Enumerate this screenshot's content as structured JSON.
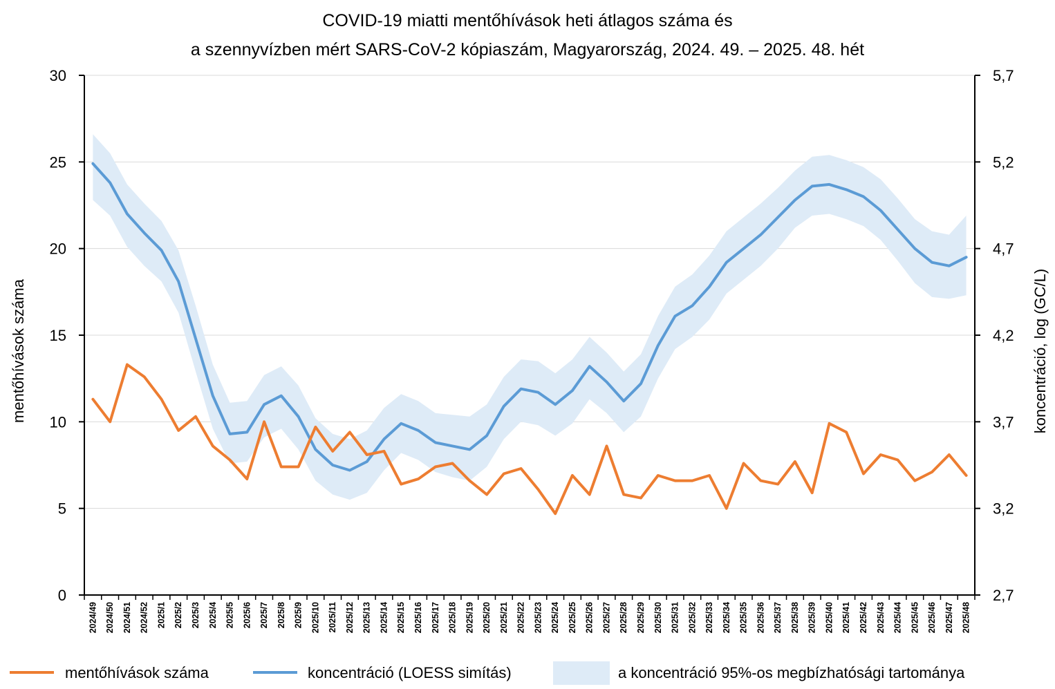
{
  "chart_data": {
    "type": "line",
    "title_line1": "COVID-19 miatti mentőhívások heti átlagos száma és",
    "title_line2": "a szennyvízben mért SARS-CoV-2 kópiaszám, Magyarország, 2024. 49. – 2025. 48. hét",
    "ylabel_left": "mentőhívások száma",
    "ylabel_right": "koncentráció, log (GC/L)",
    "ylim_left": [
      0,
      30
    ],
    "ylim_right": [
      2.7,
      5.7
    ],
    "yticks_left": [
      "0",
      "5",
      "10",
      "15",
      "20",
      "25",
      "30"
    ],
    "yticks_right": [
      "2,7",
      "3,2",
      "3,7",
      "4,2",
      "4,7",
      "5,2",
      "5,7"
    ],
    "categories": [
      "2024/49",
      "2024/50",
      "2024/51",
      "2024/52",
      "2025/1",
      "2025/2",
      "2025/3",
      "2025/4",
      "2025/5",
      "2025/6",
      "2025/7",
      "2025/8",
      "2025/9",
      "2025/10",
      "2025/11",
      "2025/12",
      "2025/13",
      "2025/14",
      "2025/15",
      "2025/16",
      "2025/17",
      "2025/18",
      "2025/19",
      "2025/20",
      "2025/21",
      "2025/22",
      "2025/23",
      "2025/24",
      "2025/25",
      "2025/26",
      "2025/27",
      "2025/28",
      "2025/29",
      "2025/30",
      "2025/31",
      "2025/32",
      "2025/33",
      "2025/34",
      "2025/35",
      "2025/36",
      "2025/37",
      "2025/38",
      "2025/39",
      "2025/40",
      "2025/41",
      "2025/42",
      "2025/43",
      "2025/44",
      "2025/45",
      "2025/46",
      "2025/47",
      "2025/48"
    ],
    "series": [
      {
        "name": "mentőhívások száma",
        "axis": "left",
        "color": "#ED7D31",
        "values": [
          11.3,
          10.0,
          13.3,
          12.6,
          11.3,
          9.5,
          10.3,
          8.6,
          7.8,
          6.7,
          10.0,
          7.4,
          7.4,
          9.7,
          8.3,
          9.4,
          8.1,
          8.3,
          6.4,
          6.7,
          7.4,
          7.6,
          6.6,
          5.8,
          7.0,
          7.3,
          6.1,
          4.7,
          6.9,
          5.8,
          8.6,
          5.8,
          5.6,
          6.9,
          6.6,
          6.6,
          6.9,
          5.0,
          7.6,
          6.6,
          6.4,
          7.7,
          5.9,
          9.9,
          9.4,
          7.0,
          8.1,
          7.8,
          6.6,
          7.1,
          8.1,
          6.9
        ]
      },
      {
        "name": "koncentráció (LOESS simítás)",
        "axis": "right",
        "color": "#5B9BD5",
        "values": [
          5.19,
          5.08,
          4.9,
          4.79,
          4.69,
          4.51,
          4.18,
          3.85,
          3.63,
          3.64,
          3.8,
          3.85,
          3.73,
          3.54,
          3.45,
          3.42,
          3.47,
          3.6,
          3.69,
          3.65,
          3.58,
          3.56,
          3.54,
          3.62,
          3.79,
          3.89,
          3.87,
          3.8,
          3.88,
          4.02,
          3.93,
          3.82,
          3.92,
          4.14,
          4.31,
          4.37,
          4.48,
          4.62,
          4.7,
          4.78,
          4.88,
          4.98,
          5.06,
          5.07,
          5.04,
          5.0,
          4.92,
          4.81,
          4.7,
          4.62,
          4.6,
          4.65
        ]
      },
      {
        "name": "a koncentráció 95%-os megbízhatósági tartománya",
        "axis": "right",
        "color": "#DEEBF7",
        "lower": [
          4.98,
          4.89,
          4.71,
          4.6,
          4.51,
          4.33,
          3.99,
          3.66,
          3.46,
          3.47,
          3.61,
          3.66,
          3.54,
          3.36,
          3.28,
          3.25,
          3.29,
          3.42,
          3.52,
          3.48,
          3.41,
          3.38,
          3.36,
          3.44,
          3.6,
          3.7,
          3.68,
          3.62,
          3.69,
          3.83,
          3.75,
          3.64,
          3.73,
          3.95,
          4.12,
          4.19,
          4.29,
          4.44,
          4.52,
          4.6,
          4.7,
          4.82,
          4.89,
          4.9,
          4.87,
          4.83,
          4.75,
          4.63,
          4.5,
          4.42,
          4.41,
          4.43
        ],
        "upper": [
          5.36,
          5.25,
          5.07,
          4.96,
          4.86,
          4.69,
          4.37,
          4.03,
          3.81,
          3.82,
          3.97,
          4.02,
          3.91,
          3.72,
          3.63,
          3.6,
          3.65,
          3.78,
          3.86,
          3.82,
          3.75,
          3.74,
          3.73,
          3.8,
          3.96,
          4.06,
          4.05,
          3.98,
          4.06,
          4.19,
          4.1,
          3.99,
          4.09,
          4.31,
          4.48,
          4.55,
          4.66,
          4.8,
          4.88,
          4.96,
          5.05,
          5.15,
          5.23,
          5.24,
          5.21,
          5.17,
          5.1,
          4.99,
          4.87,
          4.8,
          4.78,
          4.89
        ]
      }
    ],
    "legend": [
      {
        "label": "mentőhívások száma",
        "kind": "line",
        "color": "#ED7D31"
      },
      {
        "label": "koncentráció (LOESS simítás)",
        "kind": "line",
        "color": "#5B9BD5"
      },
      {
        "label": "a koncentráció 95%-os megbízhatósági tartománya",
        "kind": "band",
        "color": "#DEEBF7"
      }
    ],
    "gridlines": true,
    "legend_position": "bottom"
  }
}
